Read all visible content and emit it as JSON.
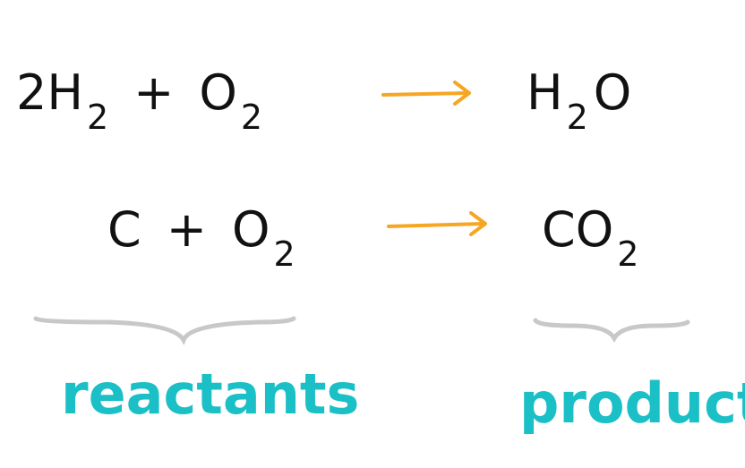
{
  "equations": [
    {
      "reactants": [
        {
          "text": "2H",
          "sub": "2"
        },
        {
          "text": "+"
        },
        {
          "text": "O",
          "sub": "2"
        }
      ],
      "products": [
        {
          "text": "H",
          "sub": "2"
        },
        {
          "text": "O"
        }
      ]
    },
    {
      "reactants": [
        {
          "text": "C"
        },
        {
          "text": "+"
        },
        {
          "text": "O",
          "sub": "2"
        }
      ],
      "products": [
        {
          "text": "CO",
          "sub": "2"
        }
      ]
    }
  ],
  "labels": {
    "reactants": "reactants",
    "products": "products"
  }
}
